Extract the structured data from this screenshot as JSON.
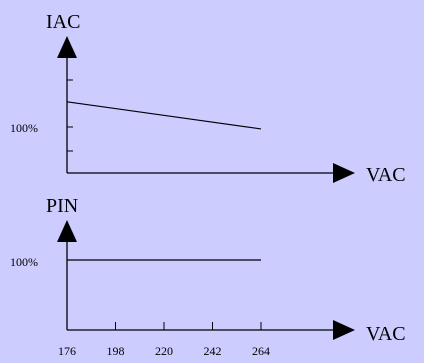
{
  "chart_data": [
    {
      "type": "line",
      "title": "",
      "ylabel": "IAC",
      "xlabel": "VAC",
      "y_tick_labels": [
        {
          "value": 100,
          "label": "100%"
        }
      ],
      "x": [
        176,
        264
      ],
      "series": [
        {
          "values": [
            110.5,
            99.2
          ]
        }
      ]
    },
    {
      "type": "line",
      "title": "",
      "ylabel": "PIN",
      "xlabel": "VAC",
      "y_tick_labels": [
        {
          "value": 100,
          "label": "100%"
        }
      ],
      "x_ticks": [
        "176",
        "198",
        "220",
        "242",
        "264"
      ],
      "x": [
        176,
        264
      ],
      "series": [
        {
          "values": [
            100,
            100
          ]
        }
      ]
    }
  ],
  "colors": {
    "background": "#ccccff",
    "ink": "#000000"
  }
}
